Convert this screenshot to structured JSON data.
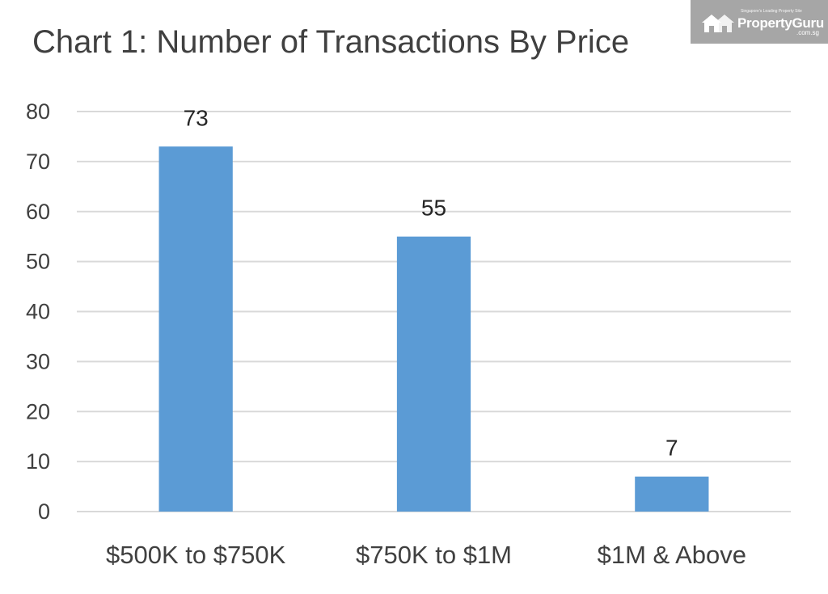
{
  "title": "Chart 1: Number of Transactions By Price",
  "watermark": {
    "tagline": "Singapore's Leading Property Site",
    "brand": "PropertyGuru",
    "domain": ".com.sg",
    "logo_icon": "house-icon"
  },
  "colors": {
    "bar": "#5b9bd5",
    "grid": "#d9d9d9",
    "text": "#404040"
  },
  "chart_data": {
    "type": "bar",
    "title": "Chart 1: Number of Transactions By Price",
    "categories": [
      "$500K to $750K",
      "$750K to $1M",
      "$1M & Above"
    ],
    "values": [
      73,
      55,
      7
    ],
    "data_labels": [
      "73",
      "55",
      "7"
    ],
    "yticks": [
      0,
      10,
      20,
      30,
      40,
      50,
      60,
      70,
      80
    ],
    "ylim": [
      0,
      80
    ],
    "xlabel": "",
    "ylabel": "",
    "grid": true,
    "legend": "none"
  }
}
